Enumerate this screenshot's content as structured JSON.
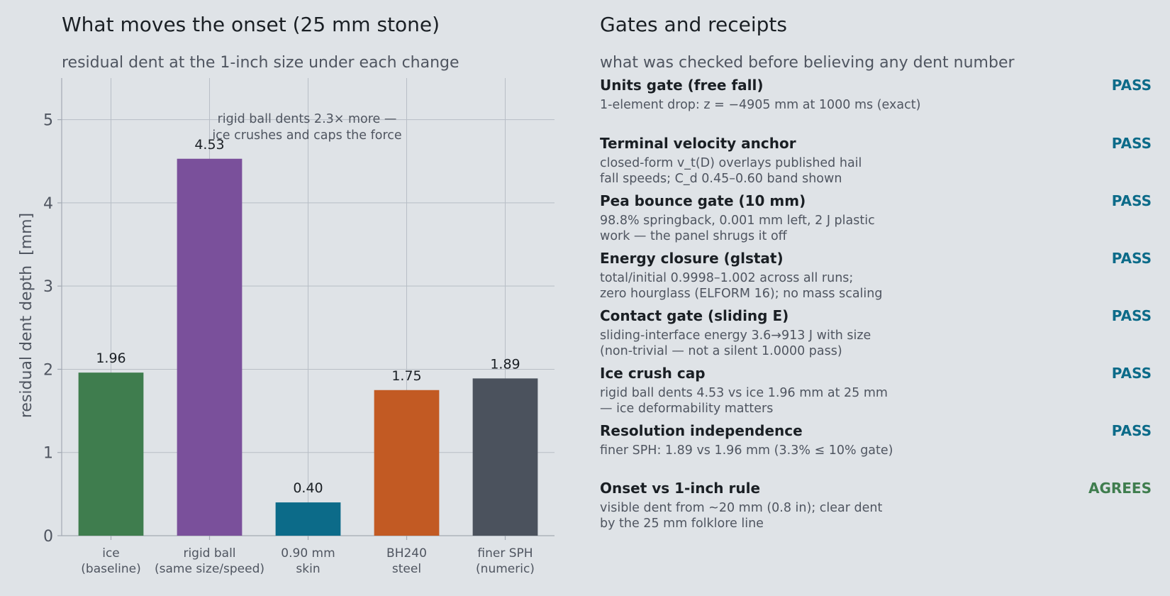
{
  "left_panel": {
    "title": "What moves the onset (25 mm stone)",
    "subtitle": "residual dent at the 1-inch size under each change"
  },
  "chart_data": {
    "type": "bar",
    "categories": [
      [
        "ice",
        "(baseline)"
      ],
      [
        "rigid ball",
        "(same size/speed)"
      ],
      [
        "0.90 mm",
        "skin"
      ],
      [
        "BH240",
        "steel"
      ],
      [
        "finer SPH",
        "(numeric)"
      ]
    ],
    "values": [
      1.96,
      4.53,
      0.4,
      1.75,
      1.89
    ],
    "value_labels": [
      "1.96",
      "4.53",
      "0.40",
      "1.75",
      "1.89"
    ],
    "bar_colors": [
      "#3f7d4e",
      "#7a509b",
      "#0c6b89",
      "#c25a23",
      "#4b525d"
    ],
    "ylabel": "residual dent depth  [mm]",
    "ylim": [
      0,
      5.5
    ],
    "yticks": [
      0,
      1,
      2,
      3,
      4,
      5
    ],
    "grid": true,
    "annotation": [
      "rigid ball dents 2.3× more —",
      "ice crushes and caps the force"
    ]
  },
  "right_panel": {
    "title": "Gates and receipts",
    "subtitle": "what was checked before believing any dent number",
    "gates": [
      {
        "name": "Units gate (free fall)",
        "status": "PASS",
        "status_color": "#0c6b89",
        "detail": [
          "1-element drop: z = −4905 mm at 1000 ms (exact)"
        ]
      },
      {
        "name": "Terminal velocity anchor",
        "status": "PASS",
        "status_color": "#0c6b89",
        "detail": [
          "closed-form v_t(D) overlays published hail",
          "fall speeds; C_d 0.45–0.60 band shown"
        ]
      },
      {
        "name": "Pea bounce gate (10 mm)",
        "status": "PASS",
        "status_color": "#0c6b89",
        "detail": [
          "98.8% springback, 0.001 mm left, 2 J plastic",
          "work — the panel shrugs it off"
        ]
      },
      {
        "name": "Energy closure (glstat)",
        "status": "PASS",
        "status_color": "#0c6b89",
        "detail": [
          "total/initial 0.9998–1.002 across all runs;",
          "zero hourglass (ELFORM 16); no mass scaling"
        ]
      },
      {
        "name": "Contact gate (sliding E)",
        "status": "PASS",
        "status_color": "#0c6b89",
        "detail": [
          "sliding-interface energy 3.6→913 J with size",
          "(non-trivial — not a silent 1.0000 pass)"
        ]
      },
      {
        "name": "Ice crush cap",
        "status": "PASS",
        "status_color": "#0c6b89",
        "detail": [
          "rigid ball dents 4.53 vs ice 1.96 mm at 25 mm",
          "— ice deformability matters"
        ]
      },
      {
        "name": "Resolution independence",
        "status": "PASS",
        "status_color": "#0c6b89",
        "detail": [
          "finer SPH: 1.89 vs 1.96 mm (3.3% ≤ 10% gate)"
        ]
      },
      {
        "name": "Onset vs 1-inch rule",
        "status": "AGREES",
        "status_color": "#3f7d4e",
        "detail": [
          "visible dent from ~20 mm (0.8 in); clear dent",
          "by the 25 mm folklore line"
        ]
      }
    ]
  }
}
